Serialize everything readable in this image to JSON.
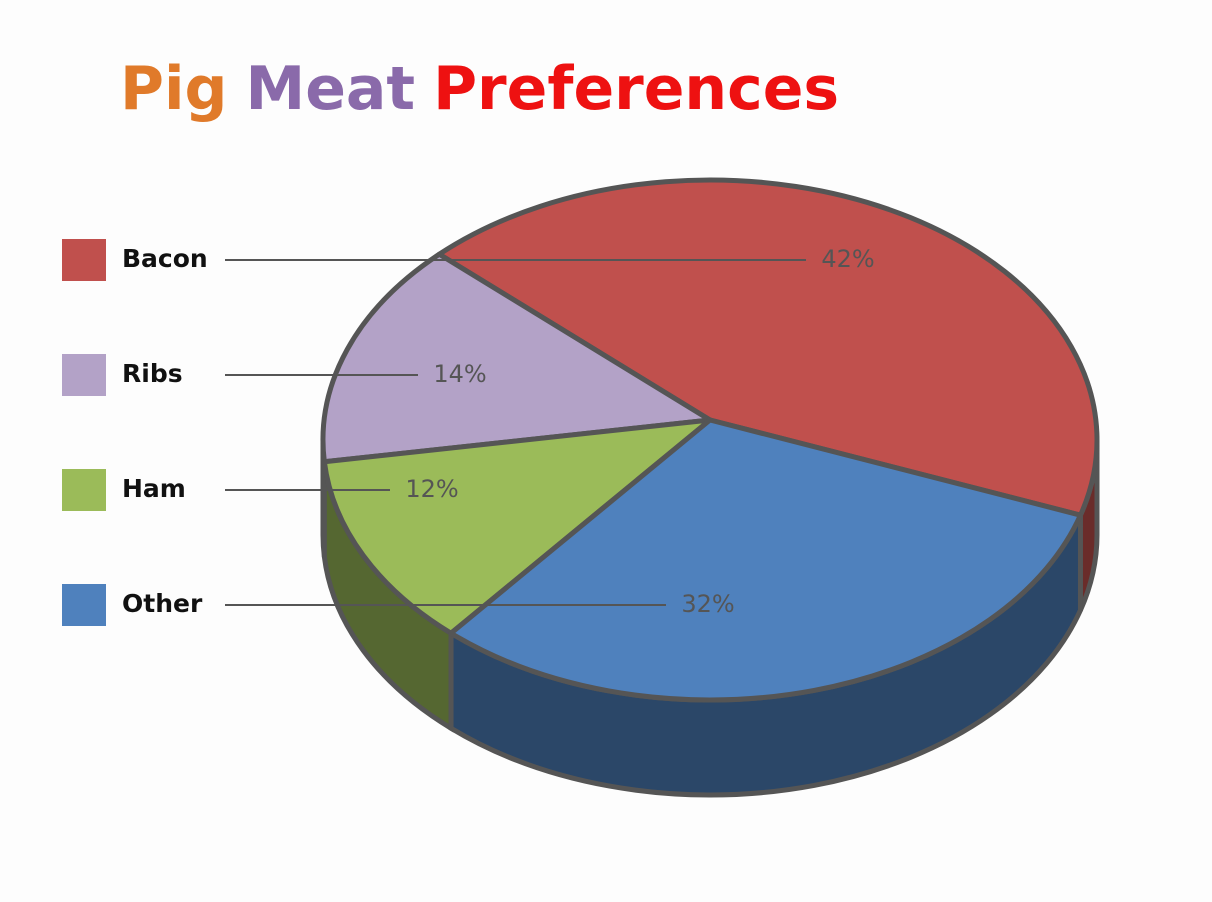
{
  "chart_data": {
    "type": "pie3d",
    "title": [
      "Pig",
      "Meat",
      "Preferences"
    ],
    "title_colors": [
      "#e07a2a",
      "#8a6aaa",
      "#ee1111"
    ],
    "categories": [
      "Bacon",
      "Ribs",
      "Ham",
      "Other"
    ],
    "values": [
      42,
      14,
      12,
      32
    ],
    "value_labels": [
      "42%",
      "14%",
      "12%",
      "32%"
    ],
    "colors": [
      "#c0504d",
      "#b3a2c7",
      "#9bbb59",
      "#4f81bd"
    ],
    "legend": "left"
  }
}
